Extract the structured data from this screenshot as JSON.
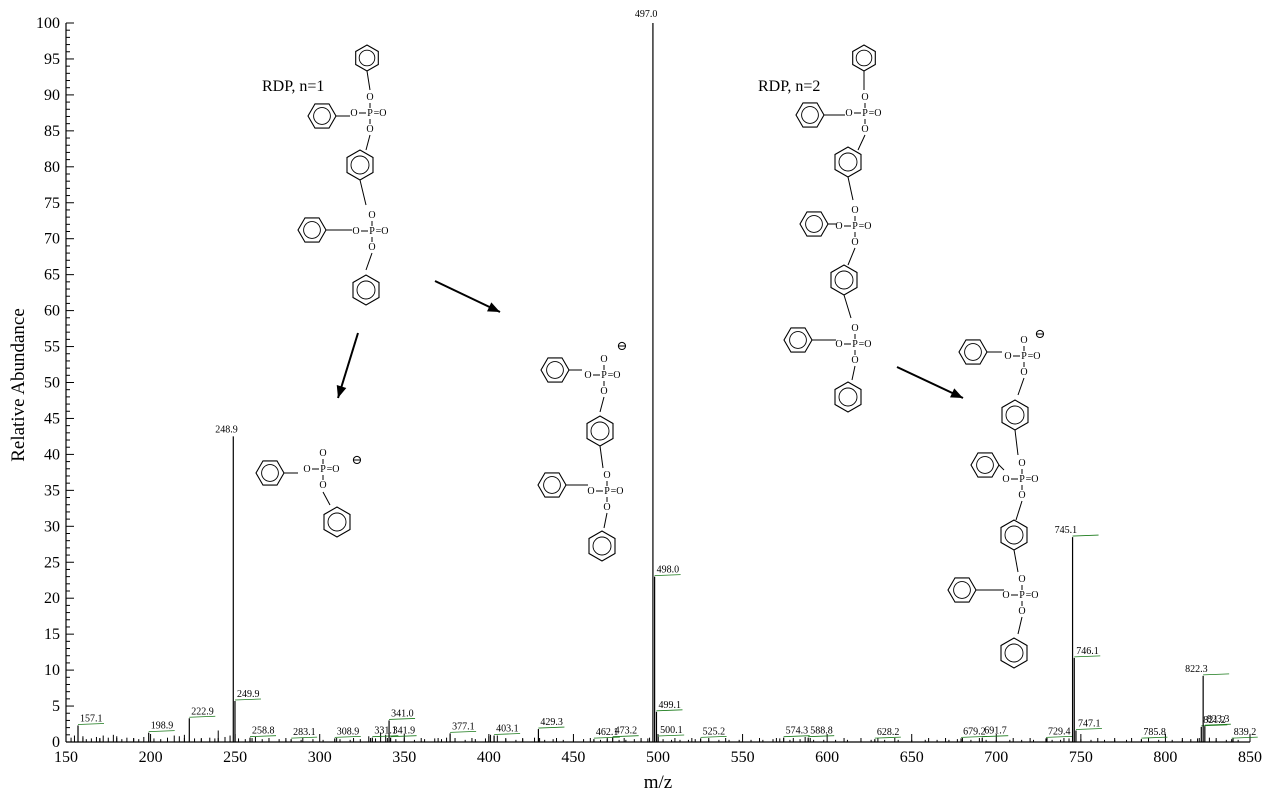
{
  "chart_data": {
    "type": "bar",
    "xlabel": "m/z",
    "ylabel": "Relative Abundance",
    "xlim": [
      150,
      850
    ],
    "ylim": [
      0,
      100
    ],
    "xticks": [
      150,
      200,
      250,
      300,
      350,
      400,
      450,
      500,
      550,
      600,
      650,
      700,
      750,
      800,
      850
    ],
    "yticks": [
      0,
      5,
      10,
      15,
      20,
      25,
      30,
      35,
      40,
      45,
      50,
      55,
      60,
      65,
      70,
      75,
      80,
      85,
      90,
      95,
      100
    ],
    "peaks": [
      {
        "mz": 157.1,
        "intensity": 2.3,
        "label": "157.1"
      },
      {
        "mz": 198.9,
        "intensity": 1.3,
        "label": "198.9"
      },
      {
        "mz": 222.9,
        "intensity": 3.3,
        "label": "222.9"
      },
      {
        "mz": 248.9,
        "intensity": 42.5,
        "label": "248.9"
      },
      {
        "mz": 249.9,
        "intensity": 5.7,
        "label": "249.9"
      },
      {
        "mz": 258.8,
        "intensity": 0.6,
        "label": "258.8"
      },
      {
        "mz": 283.1,
        "intensity": 0.4,
        "label": "283.1"
      },
      {
        "mz": 308.9,
        "intensity": 0.5,
        "label": "308.9"
      },
      {
        "mz": 331.1,
        "intensity": 0.6,
        "label": "331.1"
      },
      {
        "mz": 341.0,
        "intensity": 3.0,
        "label": "341.0"
      },
      {
        "mz": 341.9,
        "intensity": 0.6,
        "label": "341.9"
      },
      {
        "mz": 377.1,
        "intensity": 1.2,
        "label": "377.1"
      },
      {
        "mz": 403.1,
        "intensity": 0.9,
        "label": "403.1"
      },
      {
        "mz": 429.3,
        "intensity": 1.8,
        "label": "429.3"
      },
      {
        "mz": 462.1,
        "intensity": 0.4,
        "label": "462.1"
      },
      {
        "mz": 473.2,
        "intensity": 0.6,
        "label": "473.2"
      },
      {
        "mz": 497.0,
        "intensity": 100,
        "label": "497.0"
      },
      {
        "mz": 498.0,
        "intensity": 23.0,
        "label": "498.0"
      },
      {
        "mz": 499.1,
        "intensity": 4.2,
        "label": "499.1"
      },
      {
        "mz": 500.1,
        "intensity": 0.7,
        "label": "500.1"
      },
      {
        "mz": 525.2,
        "intensity": 0.5,
        "label": "525.2"
      },
      {
        "mz": 574.3,
        "intensity": 0.6,
        "label": "574.3"
      },
      {
        "mz": 588.8,
        "intensity": 0.6,
        "label": "588.8"
      },
      {
        "mz": 628.2,
        "intensity": 0.4,
        "label": "628.2"
      },
      {
        "mz": 679.2,
        "intensity": 0.5,
        "label": "679.2"
      },
      {
        "mz": 691.7,
        "intensity": 0.6,
        "label": "691.7"
      },
      {
        "mz": 729.4,
        "intensity": 0.5,
        "label": "729.4"
      },
      {
        "mz": 745.1,
        "intensity": 28.5,
        "label": "745.1"
      },
      {
        "mz": 746.1,
        "intensity": 11.7,
        "label": "746.1"
      },
      {
        "mz": 747.1,
        "intensity": 1.6,
        "label": "747.1"
      },
      {
        "mz": 785.8,
        "intensity": 0.4,
        "label": "785.8"
      },
      {
        "mz": 821.2,
        "intensity": 2.1,
        "label": "821.2"
      },
      {
        "mz": 822.3,
        "intensity": 9.2,
        "label": "822.3"
      },
      {
        "mz": 823.3,
        "intensity": 2.2,
        "label": "823.3"
      },
      {
        "mz": 839.2,
        "intensity": 0.4,
        "label": "839.2"
      }
    ],
    "noise": [
      [
        153,
        0.6
      ],
      [
        155,
        0.9
      ],
      [
        160,
        0.8
      ],
      [
        162,
        0.4
      ],
      [
        165,
        0.5
      ],
      [
        168,
        0.7
      ],
      [
        170,
        0.5
      ],
      [
        172,
        0.9
      ],
      [
        175,
        0.6
      ],
      [
        178,
        1.0
      ],
      [
        180,
        0.8
      ],
      [
        183,
        0.4
      ],
      [
        186,
        0.6
      ],
      [
        190,
        0.5
      ],
      [
        193,
        0.4
      ],
      [
        196,
        0.7
      ],
      [
        202,
        0.5
      ],
      [
        206,
        0.4
      ],
      [
        210,
        0.6
      ],
      [
        214,
        0.9
      ],
      [
        217,
        0.8
      ],
      [
        220,
        1.0
      ],
      [
        226,
        0.5
      ],
      [
        230,
        0.4
      ],
      [
        235,
        0.6
      ],
      [
        238,
        0.5
      ],
      [
        240,
        1.6
      ],
      [
        244,
        0.7
      ],
      [
        247,
        0.9
      ],
      [
        252,
        0.5
      ],
      [
        256,
        0.4
      ],
      [
        262,
        0.7
      ],
      [
        266,
        0.4
      ],
      [
        270,
        0.3
      ],
      [
        276,
        0.4
      ],
      [
        280,
        0.3
      ],
      [
        289,
        0.3
      ],
      [
        296,
        0.4
      ],
      [
        302,
        0.3
      ],
      [
        312,
        0.4
      ],
      [
        318,
        0.3
      ],
      [
        324,
        0.4
      ],
      [
        329,
        0.8
      ],
      [
        333,
        0.5
      ],
      [
        336,
        1.3
      ],
      [
        339,
        1.0
      ],
      [
        345,
        0.4
      ],
      [
        350,
        0.5
      ],
      [
        356,
        0.3
      ],
      [
        362,
        0.4
      ],
      [
        368,
        0.5
      ],
      [
        372,
        0.4
      ],
      [
        375,
        0.6
      ],
      [
        380,
        0.4
      ],
      [
        386,
        0.3
      ],
      [
        392,
        0.4
      ],
      [
        398,
        0.5
      ],
      [
        400,
        0.8
      ],
      [
        401,
        1.0
      ],
      [
        405,
        0.9
      ],
      [
        410,
        0.4
      ],
      [
        416,
        0.3
      ],
      [
        420,
        0.4
      ],
      [
        427,
        0.6
      ],
      [
        433,
        0.3
      ],
      [
        438,
        0.4
      ],
      [
        444,
        0.3
      ],
      [
        450,
        0.3
      ],
      [
        456,
        0.4
      ],
      [
        466,
        0.3
      ],
      [
        470,
        0.4
      ],
      [
        477,
        0.3
      ],
      [
        481,
        0.3
      ],
      [
        486,
        0.4
      ],
      [
        490,
        0.3
      ],
      [
        494,
        0.5
      ],
      [
        495,
        0.6
      ],
      [
        503,
        0.4
      ],
      [
        508,
        0.3
      ],
      [
        513,
        0.3
      ],
      [
        518,
        0.3
      ],
      [
        522,
        0.4
      ],
      [
        530,
        0.3
      ],
      [
        536,
        0.3
      ],
      [
        542,
        0.3
      ],
      [
        548,
        0.3
      ],
      [
        555,
        0.3
      ],
      [
        562,
        0.3
      ],
      [
        568,
        0.4
      ],
      [
        572,
        0.5
      ],
      [
        578,
        0.3
      ],
      [
        584,
        0.4
      ],
      [
        587,
        0.7
      ],
      [
        592,
        0.3
      ],
      [
        598,
        0.3
      ],
      [
        605,
        0.3
      ],
      [
        612,
        0.3
      ],
      [
        620,
        0.3
      ],
      [
        626,
        0.3
      ],
      [
        634,
        0.3
      ],
      [
        642,
        0.3
      ],
      [
        650,
        0.3
      ],
      [
        658,
        0.3
      ],
      [
        665,
        0.3
      ],
      [
        672,
        0.3
      ],
      [
        677,
        0.4
      ],
      [
        685,
        0.3
      ],
      [
        694,
        0.3
      ],
      [
        700,
        0.3
      ],
      [
        708,
        0.3
      ],
      [
        715,
        0.3
      ],
      [
        722,
        0.3
      ],
      [
        733,
        0.3
      ],
      [
        738,
        0.3
      ],
      [
        743,
        0.5
      ],
      [
        750,
        0.4
      ],
      [
        756,
        0.3
      ],
      [
        764,
        0.3
      ],
      [
        770,
        0.3
      ],
      [
        777,
        0.3
      ],
      [
        790,
        0.3
      ],
      [
        796,
        0.3
      ],
      [
        804,
        0.3
      ],
      [
        810,
        0.3
      ],
      [
        815,
        0.4
      ],
      [
        819,
        0.5
      ],
      [
        826,
        0.6
      ],
      [
        830,
        0.3
      ],
      [
        836,
        0.3
      ],
      [
        843,
        0.3
      ]
    ],
    "annotations": [
      "RDP, n=1",
      "RDP, n=2"
    ]
  },
  "colors": {
    "axis": "#000000",
    "peak": "#000000",
    "label_leader": "#1a7a1a"
  },
  "structures": {
    "atom_o": "O",
    "atom_p": "P",
    "atom_eq_o": "=O",
    "charge": "⊖"
  }
}
